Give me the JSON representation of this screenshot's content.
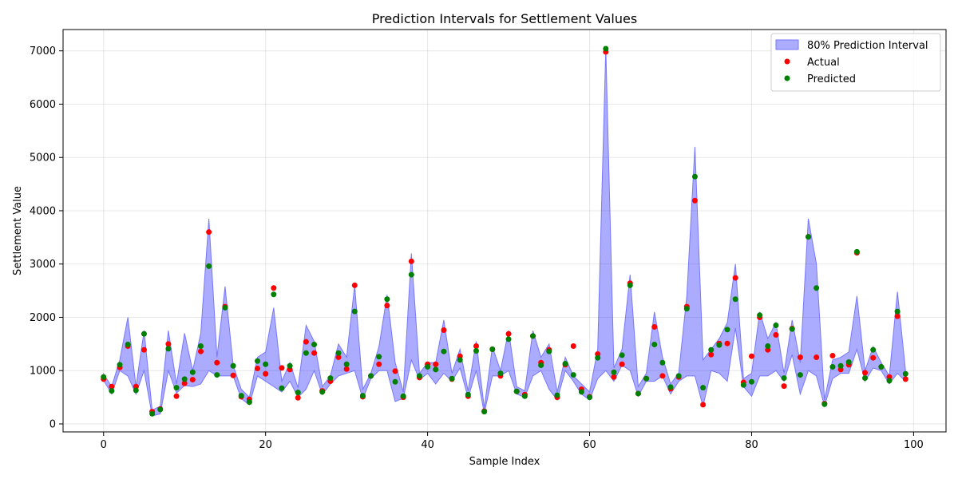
{
  "chart_data": {
    "type": "scatter",
    "title": "Prediction Intervals for Settlement Values",
    "xlabel": "Sample Index",
    "ylabel": "Settlement Value",
    "xlim": [
      -5,
      104
    ],
    "ylim": [
      -150,
      7400
    ],
    "xticks": [
      0,
      20,
      40,
      60,
      80,
      100
    ],
    "yticks": [
      0,
      1000,
      2000,
      3000,
      4000,
      5000,
      6000,
      7000
    ],
    "grid": true,
    "legend_position": "top-right",
    "colors": {
      "interval_fill": "#0000ff",
      "interval_opacity": 0.33,
      "actual": "#ff0000",
      "predicted": "#008000"
    },
    "legend": [
      {
        "label": "80% Prediction Interval",
        "kind": "band",
        "color": "#7777ff"
      },
      {
        "label": "Actual",
        "kind": "marker",
        "color": "#ff0000"
      },
      {
        "label": "Predicted",
        "kind": "marker",
        "color": "#008000"
      }
    ],
    "series": [
      {
        "name": "Actual",
        "kind": "scatter",
        "values": [
          840,
          700,
          1060,
          1460,
          700,
          1390,
          230,
          280,
          1500,
          520,
          760,
          830,
          1360,
          3600,
          1150,
          2200,
          910,
          510,
          460,
          1040,
          940,
          2550,
          1050,
          1020,
          490,
          1540,
          1330,
          620,
          800,
          1250,
          1030,
          2600,
          510,
          900,
          1120,
          2220,
          990,
          500,
          3050,
          870,
          1120,
          1120,
          1760,
          840,
          1270,
          520,
          1460,
          240,
          1400,
          900,
          1690,
          610,
          550,
          1650,
          1150,
          1390,
          500,
          1110,
          1460,
          650,
          510,
          1310,
          6980,
          880,
          1120,
          2640,
          570,
          850,
          1820,
          900,
          660,
          880,
          2200,
          4190,
          360,
          1300,
          1510,
          1510,
          2740,
          780,
          1270,
          2000,
          1390,
          1670,
          710,
          1790,
          1250,
          3510,
          1250,
          380,
          1280,
          1020,
          1110,
          3210,
          960,
          1240,
          1070,
          880,
          2020,
          840
        ]
      },
      {
        "name": "Predicted",
        "kind": "scatter",
        "values": [
          880,
          620,
          1110,
          1490,
          630,
          1690,
          190,
          270,
          1410,
          680,
          840,
          970,
          1460,
          2960,
          920,
          2180,
          1090,
          530,
          410,
          1180,
          1120,
          2430,
          670,
          1090,
          590,
          1330,
          1490,
          600,
          860,
          1330,
          1120,
          2110,
          530,
          900,
          1260,
          2340,
          790,
          520,
          2800,
          900,
          1070,
          1020,
          1360,
          850,
          1200,
          550,
          1370,
          230,
          1400,
          950,
          1590,
          610,
          520,
          1650,
          1100,
          1360,
          540,
          1130,
          920,
          600,
          500,
          1240,
          7040,
          970,
          1290,
          2600,
          570,
          850,
          1490,
          1150,
          690,
          900,
          2160,
          4640,
          680,
          1390,
          1480,
          1770,
          2340,
          730,
          790,
          2040,
          1460,
          1850,
          860,
          1780,
          920,
          3510,
          2550,
          370,
          1070,
          1090,
          1160,
          3230,
          860,
          1390,
          1070,
          810,
          2110,
          940
        ]
      },
      {
        "name": "80% Prediction Interval",
        "kind": "band",
        "lower": [
          820,
          560,
          1000,
          900,
          560,
          1000,
          150,
          190,
          1000,
          580,
          720,
          700,
          750,
          1000,
          900,
          900,
          900,
          470,
          360,
          900,
          800,
          700,
          600,
          800,
          500,
          650,
          1000,
          550,
          750,
          900,
          950,
          1000,
          470,
          850,
          1000,
          1000,
          420,
          480,
          1200,
          830,
          950,
          750,
          950,
          800,
          1050,
          490,
          1000,
          200,
          900,
          900,
          1000,
          560,
          500,
          900,
          1000,
          650,
          450,
          1000,
          800,
          560,
          450,
          850,
          1000,
          800,
          1100,
          1000,
          520,
          800,
          800,
          900,
          560,
          800,
          900,
          900,
          330,
          1000,
          950,
          800,
          1800,
          700,
          520,
          900,
          900,
          1000,
          800,
          1300,
          560,
          1000,
          900,
          330,
          850,
          950,
          950,
          1400,
          800,
          1050,
          1000,
          750,
          950,
          800
        ],
        "upper": [
          940,
          700,
          1200,
          2000,
          700,
          1750,
          260,
          330,
          1750,
          750,
          1700,
          1000,
          1700,
          3850,
          1250,
          2580,
          1100,
          650,
          500,
          1250,
          1350,
          2180,
          800,
          1150,
          680,
          1850,
          1550,
          700,
          900,
          1500,
          1250,
          2600,
          650,
          950,
          1450,
          2420,
          1150,
          600,
          3200,
          950,
          1150,
          1150,
          1950,
          950,
          1400,
          620,
          1550,
          300,
          1450,
          1000,
          1750,
          700,
          620,
          1750,
          1250,
          1500,
          600,
          1250,
          900,
          750,
          600,
          1400,
          7050,
          1050,
          1400,
          2800,
          700,
          950,
          2100,
          1250,
          750,
          950,
          2400,
          5200,
          1200,
          1400,
          1600,
          1900,
          3000,
          850,
          950,
          2100,
          1600,
          1900,
          950,
          1950,
          1150,
          3850,
          3000,
          450,
          1200,
          1250,
          1350,
          2400,
          1000,
          1450,
          1150,
          900,
          2480,
          1000
        ]
      }
    ]
  }
}
